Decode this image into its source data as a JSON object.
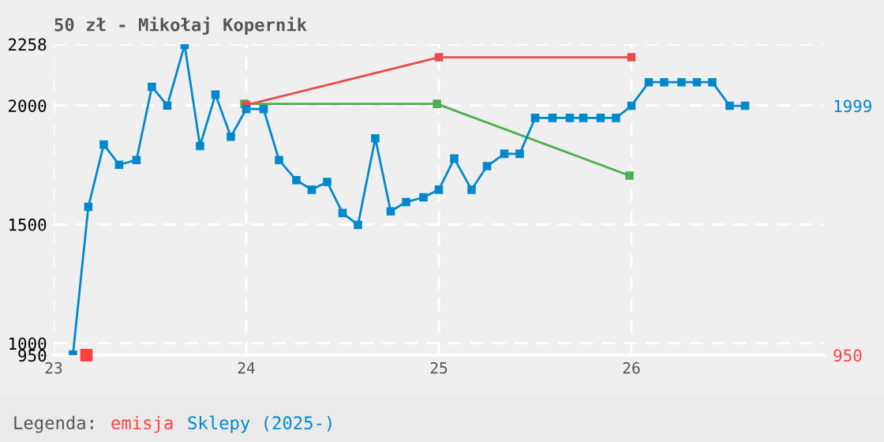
{
  "chart_data": {
    "type": "line",
    "title": "50 zł - Mikołaj Kopernik",
    "legend_title": "Legenda:",
    "xlim": [
      23,
      27
    ],
    "xticks": [
      23,
      24,
      25,
      26
    ],
    "ylim": [
      950,
      2258
    ],
    "yticks": [
      950,
      1000,
      1500,
      2000,
      2258
    ],
    "y2lim": [
      950,
      2258
    ],
    "y2ticks": [
      950,
      1999
    ],
    "grid": true,
    "legend": "bottom",
    "marker": "square",
    "line_style": "solid",
    "series": [
      {
        "name": "emisja",
        "type": "scatter",
        "color": "#ff4040",
        "x": [
          23.17
        ],
        "values": [
          950
        ]
      },
      {
        "color": "#4caf50",
        "x": [
          23.99,
          24.99,
          25.99
        ],
        "values": [
          2007,
          2007,
          1705
        ]
      },
      {
        "color": "#e84c4c",
        "x": [
          24.0,
          25.0,
          26.0
        ],
        "values": [
          2002,
          2203,
          2203
        ]
      },
      {
        "name": "Sklepy (2025-)",
        "color": "#0088cc",
        "x": [
          23.1,
          23.18,
          23.26,
          23.34,
          23.43,
          23.51,
          23.59,
          23.68,
          23.76,
          23.84,
          23.92,
          24.0,
          24.09,
          24.17,
          24.26,
          24.34,
          24.42,
          24.5,
          24.58,
          24.67,
          24.75,
          24.83,
          24.92,
          25.0,
          25.08,
          25.17,
          25.25,
          25.34,
          25.42,
          25.5,
          25.59,
          25.68,
          25.75,
          25.84,
          25.92,
          26.0,
          26.09,
          26.17,
          26.26,
          26.34,
          26.42,
          26.51,
          26.59
        ],
        "values": [
          952,
          1574,
          1836,
          1751,
          1771,
          2079,
          2000,
          2255,
          1830,
          2046,
          1869,
          1985,
          1985,
          1771,
          1686,
          1646,
          1679,
          1548,
          1498,
          1862,
          1555,
          1594,
          1614,
          1646,
          1777,
          1646,
          1745,
          1797,
          1797,
          1948,
          1948,
          1948,
          1948,
          1948,
          1948,
          1999,
          2098,
          2098,
          2098,
          2098,
          2098,
          1999,
          1999
        ]
      }
    ]
  }
}
